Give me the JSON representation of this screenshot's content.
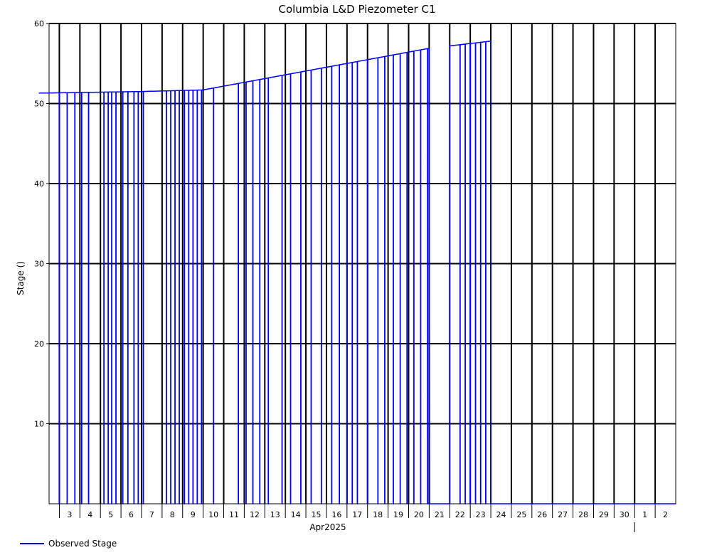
{
  "chart_data": {
    "type": "line",
    "title": "Columbia L&D Piezometer C1",
    "ylabel": "Stage ()",
    "xlabel": "Apr2025",
    "ylim": [
      0,
      60
    ],
    "y_ticks": [
      10,
      20,
      30,
      40,
      50,
      60
    ],
    "x_tick_labels": [
      "3",
      "4",
      "5",
      "6",
      "7",
      "8",
      "9",
      "10",
      "11",
      "12",
      "13",
      "14",
      "15",
      "16",
      "17",
      "18",
      "19",
      "20",
      "21",
      "22",
      "23",
      "24",
      "25",
      "26",
      "27",
      "28",
      "29",
      "30",
      "1",
      "2"
    ],
    "x_range_days": [
      "2025-04-02T12:00",
      "2025-05-03T00:00"
    ],
    "grid": true,
    "legend_position": "bottom-left",
    "color": "#0000ff",
    "series": [
      {
        "name": "Observed Stage",
        "segments": [
          {
            "start": "2025-04-02",
            "end": "2025-04-07",
            "y_start": 51.3,
            "y_end": 51.5
          },
          {
            "start": "2025-04-07",
            "end": "2025-04-10",
            "y_start": 51.5,
            "y_end": 51.7
          },
          {
            "start": "2025-04-10",
            "end": "2025-04-21",
            "y_start": 51.7,
            "y_end": 56.9
          },
          {
            "start": "2025-04-22",
            "end": "2025-04-24",
            "y_start": 57.2,
            "y_end": 57.8
          }
        ],
        "dropouts_to_zero": [
          "2025-04-03T00:00",
          "2025-04-03T09:00",
          "2025-04-03T18:00",
          "2025-04-04T02:00",
          "2025-04-04T10:00",
          "2025-04-05T04:00",
          "2025-04-05T09:00",
          "2025-04-05T13:00",
          "2025-04-05T18:00",
          "2025-04-06T02:00",
          "2025-04-06T08:00",
          "2025-04-06T15:00",
          "2025-04-06T20:00",
          "2025-04-07T02:00",
          "2025-04-08T05:00",
          "2025-04-08T10:00",
          "2025-04-08T15:00",
          "2025-04-08T20:00",
          "2025-04-09T02:00",
          "2025-04-09T07:00",
          "2025-04-09T12:00",
          "2025-04-09T17:00",
          "2025-04-09T22:00",
          "2025-04-10T12:00",
          "2025-04-11T17:00",
          "2025-04-12T02:00",
          "2025-04-12T10:00",
          "2025-04-12T18:00",
          "2025-04-13T04:00",
          "2025-04-13T20:00",
          "2025-04-14T06:00",
          "2025-04-14T18:00",
          "2025-04-15T06:00",
          "2025-04-15T18:00",
          "2025-04-16T06:00",
          "2025-04-16T15:00",
          "2025-04-17T00:00",
          "2025-04-17T06:00",
          "2025-04-17T12:00",
          "2025-04-18T00:00",
          "2025-04-18T12:00",
          "2025-04-18T20:00",
          "2025-04-19T06:00",
          "2025-04-19T14:00",
          "2025-04-19T22:00",
          "2025-04-20T06:00",
          "2025-04-20T14:00",
          "2025-04-20T22:00",
          "2025-04-21T06:00",
          "2025-04-21T14:00",
          "2025-04-22T12:00",
          "2025-04-22T18:00",
          "2025-04-23T00:00",
          "2025-04-23T06:00",
          "2025-04-23T12:00",
          "2025-04-23T18:00"
        ],
        "after_end_value": 0
      }
    ]
  }
}
